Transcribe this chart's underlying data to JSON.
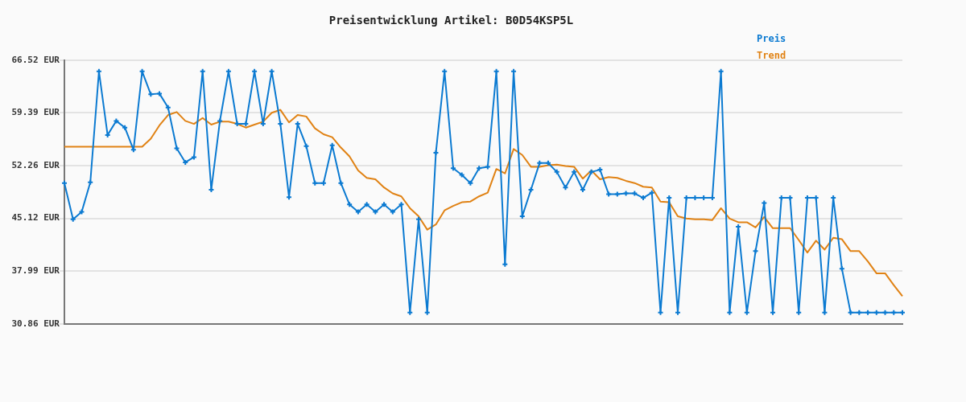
{
  "chart_data": {
    "type": "line",
    "title": "Preisentwicklung Artikel: B0D54KSP5L",
    "categories": [
      null,
      null,
      null,
      null,
      null,
      null,
      null,
      null,
      null,
      null,
      null,
      null,
      null,
      null,
      null,
      null,
      null,
      null,
      null,
      null,
      null,
      null,
      null,
      null,
      null,
      null,
      null,
      null,
      null,
      null,
      null,
      null,
      null,
      null,
      null,
      null,
      null,
      null,
      null,
      null,
      null,
      null,
      null,
      null,
      null,
      null,
      null,
      null,
      null,
      null,
      null,
      null,
      null,
      null,
      null,
      null,
      null,
      null,
      null,
      null,
      null,
      null,
      null,
      null,
      null,
      null,
      null,
      null,
      null,
      null,
      null,
      null,
      null,
      null,
      null,
      null,
      null,
      null,
      null,
      null,
      null,
      null,
      null,
      null,
      null,
      null,
      null,
      null,
      null,
      null,
      null,
      null,
      null,
      null,
      null,
      null,
      null,
      null
    ],
    "series": [
      {
        "name": "Preis",
        "color": "#0b7ad1",
        "marker": "cross",
        "values": [
          49.9,
          45.0,
          46.0,
          50.0,
          65.0,
          56.4,
          58.3,
          57.4,
          54.4,
          65.0,
          61.9,
          62.0,
          60.1,
          54.6,
          52.7,
          53.4,
          65.0,
          49.0,
          58.3,
          65.0,
          57.9,
          57.9,
          65.0,
          57.9,
          65.0,
          57.9,
          48.0,
          57.9,
          54.9,
          49.9,
          49.9,
          55.0,
          49.9,
          47.0,
          46.0,
          47.0,
          46.0,
          47.0,
          46.0,
          47.0,
          32.4,
          45.0,
          32.4,
          54.0,
          65.0,
          51.9,
          51.0,
          49.9,
          51.9,
          52.1,
          65.0,
          38.9,
          65.0,
          45.4,
          49.0,
          52.6,
          52.6,
          51.4,
          49.3,
          51.4,
          49.0,
          51.4,
          51.7,
          48.4,
          48.4,
          48.5,
          48.5,
          47.9,
          48.6,
          32.4,
          47.9,
          32.4,
          47.9,
          47.9,
          47.9,
          47.9,
          65.0,
          32.4,
          44.0,
          32.4,
          40.7,
          47.2,
          32.4,
          47.9,
          47.9,
          32.4,
          47.9,
          47.9,
          32.4,
          47.9,
          38.3,
          32.4,
          32.4,
          32.4,
          32.4,
          32.4,
          32.4,
          32.4
        ]
      },
      {
        "name": "Trend",
        "color": "#e08214",
        "marker": "none",
        "values": [
          54.8,
          54.8,
          54.8,
          54.8,
          54.8,
          54.8,
          54.8,
          54.8,
          54.8,
          54.8,
          55.9,
          57.7,
          59.1,
          59.5,
          58.3,
          57.9,
          58.7,
          57.8,
          58.2,
          58.2,
          57.9,
          57.4,
          57.8,
          58.2,
          59.4,
          59.8,
          58.1,
          59.1,
          58.9,
          57.3,
          56.5,
          56.1,
          54.7,
          53.5,
          51.6,
          50.6,
          50.4,
          49.3,
          48.5,
          48.1,
          46.5,
          45.4,
          43.6,
          44.3,
          46.2,
          46.8,
          47.3,
          47.4,
          48.1,
          48.6,
          51.8,
          51.2,
          54.5,
          53.7,
          52.1,
          52.1,
          52.3,
          52.4,
          52.2,
          52.1,
          50.5,
          51.6,
          50.4,
          50.7,
          50.6,
          50.2,
          49.9,
          49.4,
          49.3,
          47.4,
          47.3,
          45.4,
          45.1,
          45.0,
          45.0,
          44.9,
          46.5,
          45.1,
          44.6,
          44.6,
          43.9,
          45.3,
          43.8,
          43.8,
          43.8,
          42.2,
          40.5,
          42.1,
          40.9,
          42.5,
          42.3,
          40.7,
          40.7,
          39.3,
          37.7,
          37.7,
          36.1,
          34.6
        ]
      }
    ],
    "ylim": [
      30.86,
      66.52
    ],
    "yticks": [
      {
        "value": 30.86,
        "label": "30.86 EUR"
      },
      {
        "value": 37.99,
        "label": "37.99 EUR"
      },
      {
        "value": 45.12,
        "label": "45.12 EUR"
      },
      {
        "value": 52.26,
        "label": "52.26 EUR"
      },
      {
        "value": 59.39,
        "label": "59.39 EUR"
      },
      {
        "value": 66.52,
        "label": "66.52 EUR"
      }
    ],
    "grid": "y",
    "legend": "top right"
  }
}
